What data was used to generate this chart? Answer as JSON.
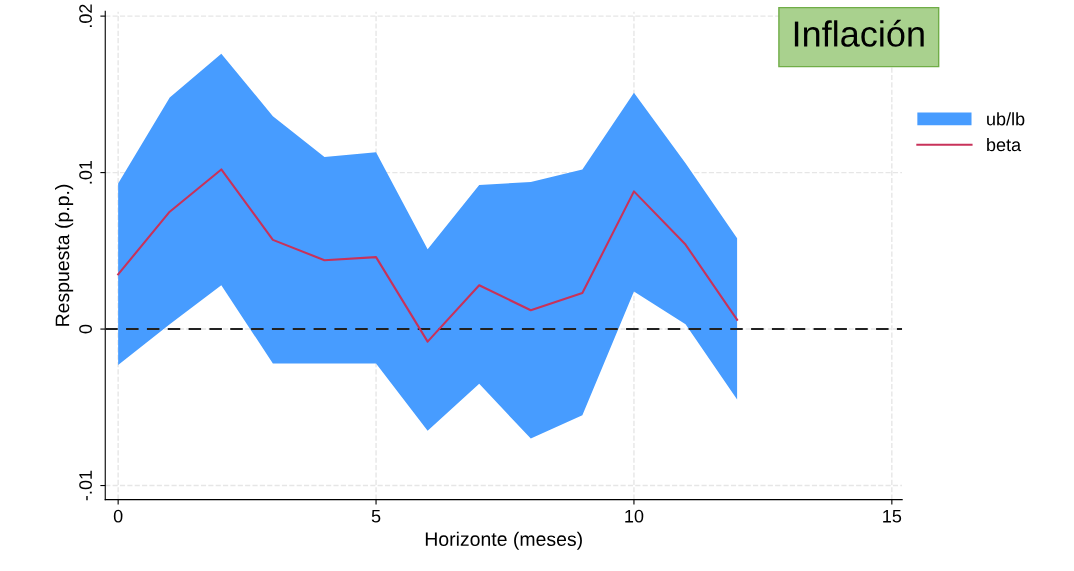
{
  "chart_data": {
    "type": "line",
    "xlabel": "Horizonte (meses)",
    "ylabel": "Respuesta (p.p.)",
    "x": [
      0,
      1,
      2,
      3,
      4,
      5,
      6,
      7,
      8,
      9,
      10,
      11,
      12
    ],
    "series": [
      {
        "name": "ub/lb",
        "type": "area",
        "color": "#479cff",
        "values": [
          null,
          null,
          null,
          null,
          null,
          null,
          null,
          null,
          null,
          null,
          null,
          null,
          null
        ]
      },
      {
        "name": "beta",
        "type": "line",
        "color": "#c8325a",
        "values": [
          0.0035,
          0.0075,
          0.0102,
          0.0057,
          0.0044,
          0.0046,
          -0.0008,
          0.0028,
          0.0012,
          0.0023,
          0.0088,
          0.0054,
          0.0006
        ],
        "lower": [
          -0.0023,
          0.0003,
          0.0028,
          -0.0022,
          -0.0022,
          -0.0022,
          -0.0065,
          -0.0035,
          -0.007,
          -0.0055,
          0.0024,
          0.0003,
          -0.0045
        ],
        "upper": [
          0.0093,
          0.0148,
          0.0176,
          0.0136,
          0.011,
          0.0113,
          0.0051,
          0.0092,
          0.0094,
          0.0102,
          0.0151,
          0.0106,
          0.0058
        ]
      }
    ],
    "xlim": [
      -0.25,
      15.2
    ],
    "xticks": [
      0,
      5,
      10,
      15
    ],
    "ylim": [
      -0.0109,
      0.0203
    ],
    "yticks": [
      {
        "value": -0.01,
        "label": "-.01"
      },
      {
        "value": 0,
        "label": "0"
      },
      {
        "value": 0.01,
        "label": ".01"
      },
      {
        "value": 0.02,
        "label": ".02"
      }
    ],
    "ref_lines": [
      {
        "axis": "y",
        "value": 0,
        "color": "#222222",
        "line_style": "dashed"
      }
    ],
    "annotations": [
      "Inflación"
    ],
    "grid": true,
    "legend": "right"
  }
}
